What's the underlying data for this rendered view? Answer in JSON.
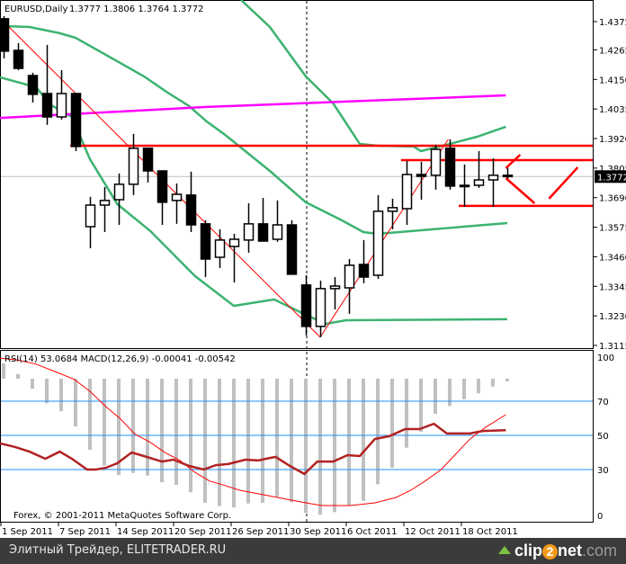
{
  "header": {
    "symbol": "EURUSD,Daily",
    "ohlc": "1.3777 1.3806 1.3764 1.3772"
  },
  "indicator_header": "RSI(14) 53.0684  MACD(12,26,9) -0.00041 -0.00542",
  "copyright": "Forex, © 2001-2011 MetaQuotes Software Corp.",
  "footer": {
    "text": "Элитный Трейдер, ELITETRADER.RU",
    "logo": "clip2net.com"
  },
  "colors": {
    "bands": "#3cb371",
    "ma": "#ff00ff",
    "levels": "#ff0000",
    "rsi": "#b22222",
    "signal": "#ff0000",
    "histogram": "#c0c0c0",
    "rsi_levels": "#1e90ff"
  },
  "chart_data": [
    {
      "type": "candlestick",
      "current_price": "1.3772",
      "yticks": [
        "1.4375",
        "1.4265",
        "1.4150",
        "1.4035",
        "1.3920",
        "1.3805",
        "1.3690",
        "1.3575",
        "1.3460",
        "1.3345",
        "1.3230",
        "1.3115"
      ],
      "ylim": [
        1.3115,
        1.4375
      ],
      "xticks": [
        {
          "i": 0,
          "label": "1 Sep 2011"
        },
        {
          "i": 4,
          "label": "7 Sep 2011"
        },
        {
          "i": 8,
          "label": "14 Sep 2011"
        },
        {
          "i": 12,
          "label": "20 Sep 2011"
        },
        {
          "i": 16,
          "label": "26 Sep 2011"
        },
        {
          "i": 20,
          "label": "30 Sep 2011"
        },
        {
          "i": 24,
          "label": "6 Oct 2011"
        },
        {
          "i": 28,
          "label": "12 Oct 2011"
        },
        {
          "i": 32,
          "label": "18 Oct 2011"
        }
      ],
      "candles": [
        [
          1.4386,
          1.4396,
          1.4232,
          1.426
        ],
        [
          1.4263,
          1.4291,
          1.4186,
          1.4193
        ],
        [
          1.4165,
          1.4176,
          1.406,
          1.4092
        ],
        [
          1.4095,
          1.4284,
          1.3973,
          1.4004
        ],
        [
          1.4004,
          1.4186,
          1.3994,
          1.4095
        ],
        [
          1.4095,
          1.4095,
          1.3871,
          1.3889
        ],
        [
          1.3577,
          1.3693,
          1.3493,
          1.3661
        ],
        [
          1.3661,
          1.3731,
          1.3556,
          1.3679
        ],
        [
          1.3682,
          1.3784,
          1.3584,
          1.3742
        ],
        [
          1.3742,
          1.3938,
          1.37,
          1.3882
        ],
        [
          1.3882,
          1.3882,
          1.3749,
          1.3794
        ],
        [
          1.3794,
          1.3794,
          1.3584,
          1.3672
        ],
        [
          1.3679,
          1.3745,
          1.3588,
          1.3703
        ],
        [
          1.37,
          1.3791,
          1.3556,
          1.3584
        ],
        [
          1.3588,
          1.3602,
          1.3381,
          1.3451
        ],
        [
          1.3458,
          1.3567,
          1.3416,
          1.3525
        ],
        [
          1.35,
          1.3549,
          1.336,
          1.3528
        ],
        [
          1.3525,
          1.3668,
          1.3476,
          1.3588
        ],
        [
          1.3588,
          1.3689,
          1.3521,
          1.3521
        ],
        [
          1.3528,
          1.3679,
          1.3518,
          1.3584
        ],
        [
          1.3584,
          1.3602,
          1.3392,
          1.3392
        ],
        [
          1.335,
          1.3388,
          1.3154,
          1.3189
        ],
        [
          1.3189,
          1.3367,
          1.3147,
          1.3336
        ],
        [
          1.3336,
          1.3381,
          1.3255,
          1.3346
        ],
        [
          1.3339,
          1.3451,
          1.3238,
          1.3427
        ],
        [
          1.343,
          1.3525,
          1.3357,
          1.3381
        ],
        [
          1.3388,
          1.37,
          1.3374,
          1.3637
        ],
        [
          1.3637,
          1.3686,
          1.3567,
          1.3651
        ],
        [
          1.3647,
          1.3833,
          1.3584,
          1.378
        ],
        [
          1.378,
          1.3829,
          1.3682,
          1.3773
        ],
        [
          1.3777,
          1.3896,
          1.3721,
          1.3878
        ],
        [
          1.3882,
          1.3917,
          1.3721,
          1.3735
        ],
        [
          1.3738,
          1.3819,
          1.3654,
          1.3738
        ],
        [
          1.3738,
          1.3871,
          1.3728,
          1.3759
        ],
        [
          1.3759,
          1.3843,
          1.3654,
          1.3777
        ],
        [
          1.3777,
          1.3806,
          1.3764,
          1.3772
        ]
      ],
      "bollinger_upper": [
        [
          16.5,
          1.4459
        ],
        [
          18.5,
          1.4354
        ],
        [
          21,
          1.4162
        ],
        [
          22.9,
          1.4057
        ],
        [
          24.75,
          1.3899
        ],
        [
          26,
          1.3892
        ],
        [
          28.5,
          1.3889
        ],
        [
          29,
          1.3871
        ],
        [
          30,
          1.3885
        ],
        [
          31,
          1.3899
        ],
        [
          32.9,
          1.3927
        ],
        [
          34.9,
          1.3966
        ]
      ],
      "bollinger_middle": [
        [
          -0.25,
          1.4358
        ],
        [
          1.8,
          1.4354
        ],
        [
          3.9,
          1.433
        ],
        [
          5,
          1.4312
        ],
        [
          7,
          1.4249
        ],
        [
          9.75,
          1.4162
        ],
        [
          11.4,
          1.4099
        ],
        [
          12.9,
          1.4046
        ],
        [
          14.1,
          1.3987
        ],
        [
          15.4,
          1.3934
        ],
        [
          18.5,
          1.3794
        ],
        [
          21,
          1.3672
        ],
        [
          23.5,
          1.3602
        ],
        [
          25,
          1.3556
        ],
        [
          26,
          1.3549
        ],
        [
          35,
          1.3591
        ]
      ],
      "bollinger_lower": [
        [
          -0.25,
          1.4158
        ],
        [
          2.25,
          1.412
        ],
        [
          3.3,
          1.405
        ],
        [
          4.75,
          1.4004
        ],
        [
          6,
          1.384
        ],
        [
          7.9,
          1.3665
        ],
        [
          10.2,
          1.356
        ],
        [
          13.3,
          1.3385
        ],
        [
          16,
          1.3269
        ],
        [
          18.8,
          1.3294
        ],
        [
          21,
          1.3234
        ],
        [
          22.4,
          1.3199
        ],
        [
          23.8,
          1.3213
        ],
        [
          35,
          1.3217
        ]
      ],
      "moving_average": [
        [
          -0.25,
          1.4
        ],
        [
          14.1,
          1.4043
        ],
        [
          34.9,
          1.4088
        ]
      ],
      "horizontal_levels": [
        {
          "from": 5,
          "price": 1.3892
        },
        {
          "from": 28,
          "price": 1.3836
        },
        {
          "from": 32,
          "price": 1.3658
        }
      ],
      "trendlines": [
        [
          [
            -0.25,
            1.4389
          ],
          [
            22,
            1.3147
          ]
        ],
        [
          [
            22,
            1.3147
          ],
          [
            30.9,
            1.3917
          ]
        ]
      ],
      "drawn_arrows": [
        [
          [
            34.9,
            1.3805
          ],
          [
            35.9,
            1.3857
          ]
        ],
        [
          [
            34.9,
            1.3766
          ],
          [
            36.9,
            1.3668
          ]
        ],
        [
          [
            37.9,
            1.3686
          ],
          [
            39.9,
            1.3808
          ]
        ]
      ],
      "vertical_marker": 21
    },
    {
      "type": "line",
      "yticks": [
        "100",
        "70",
        "50",
        "30",
        "0"
      ],
      "ylim": [
        0,
        100
      ],
      "levels": [
        70,
        50,
        30
      ],
      "rsi": [
        [
          -0.25,
          45.3
        ],
        [
          0.8,
          43.2
        ],
        [
          1.8,
          40.5
        ],
        [
          2.9,
          36.3
        ],
        [
          3.9,
          40.5
        ],
        [
          4.75,
          36.3
        ],
        [
          5.8,
          30
        ],
        [
          6.4,
          30
        ],
        [
          7.1,
          31
        ],
        [
          7.9,
          33.7
        ],
        [
          8.9,
          40
        ],
        [
          9.75,
          37.9
        ],
        [
          11,
          34.7
        ],
        [
          11.8,
          35.8
        ],
        [
          12.9,
          32.1
        ],
        [
          13.9,
          30
        ],
        [
          14.75,
          32.6
        ],
        [
          15.6,
          33.2
        ],
        [
          16.8,
          35.8
        ],
        [
          17.7,
          35.3
        ],
        [
          18.5,
          36.8
        ],
        [
          18.9,
          37.4
        ],
        [
          19.9,
          32.1
        ],
        [
          20.9,
          27.4
        ],
        [
          21.8,
          34.7
        ],
        [
          22.9,
          34.7
        ],
        [
          23.9,
          38.4
        ],
        [
          24.75,
          37.9
        ],
        [
          25.8,
          47.9
        ],
        [
          26.8,
          49.5
        ],
        [
          27.9,
          53.7
        ],
        [
          28.9,
          53.7
        ],
        [
          29.9,
          56.8
        ],
        [
          30.8,
          51.1
        ],
        [
          32.4,
          51.1
        ],
        [
          33.3,
          52.6
        ],
        [
          34.9,
          53.07
        ]
      ],
      "macd_histogram": [
        0.0023,
        0.0007,
        -0.0015,
        -0.0037,
        -0.0049,
        -0.0072,
        -0.0107,
        -0.0131,
        -0.0145,
        -0.0142,
        -0.0146,
        -0.0156,
        -0.016,
        -0.0171,
        -0.0187,
        -0.0192,
        -0.0194,
        -0.0188,
        -0.0187,
        -0.0178,
        -0.0186,
        -0.0202,
        -0.0205,
        -0.0201,
        -0.0191,
        -0.0184,
        -0.0159,
        -0.0134,
        -0.0104,
        -0.008,
        -0.0053,
        -0.0041,
        -0.0031,
        -0.0022,
        -0.0012,
        -0.00041
      ],
      "macd_signal": [
        [
          -0.25,
          0.0031
        ],
        [
          1,
          0.0028
        ],
        [
          2.25,
          0.0022
        ],
        [
          3.9,
          0.0008
        ],
        [
          4.9,
          -0.0001
        ],
        [
          6,
          -0.0019
        ],
        [
          7.1,
          -0.0042
        ],
        [
          8.1,
          -0.006
        ],
        [
          9.1,
          -0.0083
        ],
        [
          10.2,
          -0.0096
        ],
        [
          11.2,
          -0.0111
        ],
        [
          12.25,
          -0.0123
        ],
        [
          13.3,
          -0.0141
        ],
        [
          14.3,
          -0.0154
        ],
        [
          15.4,
          -0.0161
        ],
        [
          16.4,
          -0.0168
        ],
        [
          18.1,
          -0.0175
        ],
        [
          19.75,
          -0.0182
        ],
        [
          21,
          -0.0187
        ],
        [
          22.1,
          -0.0191
        ],
        [
          24.1,
          -0.0191
        ],
        [
          25.8,
          -0.0187
        ],
        [
          27.25,
          -0.0179
        ],
        [
          28.3,
          -0.0168
        ],
        [
          29.3,
          -0.0154
        ],
        [
          30.4,
          -0.0137
        ],
        [
          31.4,
          -0.0114
        ],
        [
          32.4,
          -0.0091
        ],
        [
          33.5,
          -0.0073
        ],
        [
          34.9,
          -0.00542
        ]
      ]
    }
  ]
}
